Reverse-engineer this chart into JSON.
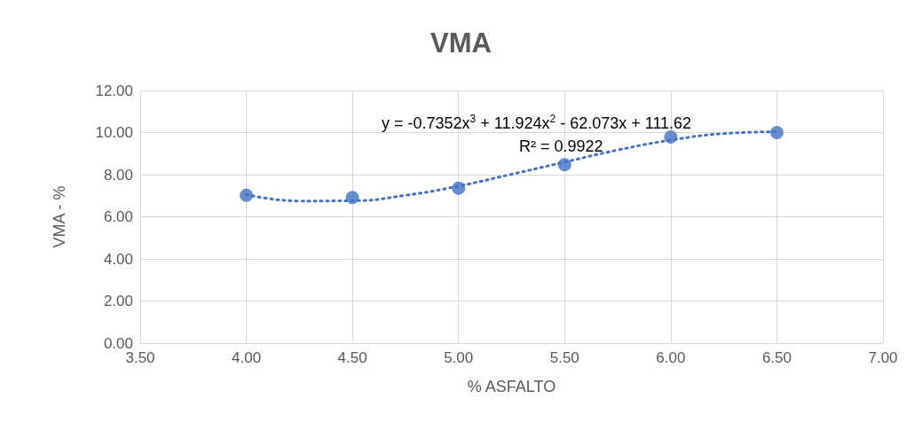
{
  "chart_data": {
    "type": "scatter",
    "title": "VMA",
    "xlabel": "% ASFALTO",
    "ylabel": "VMA - %",
    "x": [
      4.0,
      4.5,
      5.0,
      5.5,
      6.0,
      6.5
    ],
    "series": [
      {
        "color": "#4472c4",
        "marker": "circle",
        "values": [
          7.02,
          6.92,
          7.36,
          8.47,
          9.79,
          10.0
        ]
      },
      {
        "type": "line",
        "color": "#4472c4",
        "marker": "none",
        "line_style": "dotted",
        "x": [
          4.0,
          4.25,
          4.5,
          4.75,
          5.0,
          5.25,
          5.5,
          5.75,
          6.0,
          6.25,
          6.5
        ],
        "values": [
          7.06,
          6.75,
          6.76,
          7.02,
          7.46,
          8.02,
          8.6,
          9.17,
          9.64,
          9.95,
          10.04
        ]
      }
    ],
    "xlim": [
      3.5,
      7.0
    ],
    "xticks": [
      {
        "value": 3.5,
        "label": "3.50"
      },
      {
        "value": 4,
        "label": "4.00"
      },
      {
        "value": 4.5,
        "label": "4.50"
      },
      {
        "value": 5,
        "label": "5.00"
      },
      {
        "value": 5.5,
        "label": "5.50"
      },
      {
        "value": 6,
        "label": "6.00"
      },
      {
        "value": 6.5,
        "label": "6.50"
      },
      {
        "value": 7,
        "label": "7.00"
      }
    ],
    "ylim": [
      0,
      12
    ],
    "yticks": [
      {
        "value": 0,
        "label": "0.00"
      },
      {
        "value": 2,
        "label": "2.00"
      },
      {
        "value": 4,
        "label": "4.00"
      },
      {
        "value": 6,
        "label": "6.00"
      },
      {
        "value": 8,
        "label": "8.00"
      },
      {
        "value": 10,
        "label": "10.00"
      },
      {
        "value": 12,
        "label": "12.00"
      }
    ],
    "grid": true,
    "annotations": [
      "y = -0.7352x$^{3}$ + 11.924x$^{2}$ - 62.073x + 111.62",
      "R² = 0.9922"
    ]
  }
}
